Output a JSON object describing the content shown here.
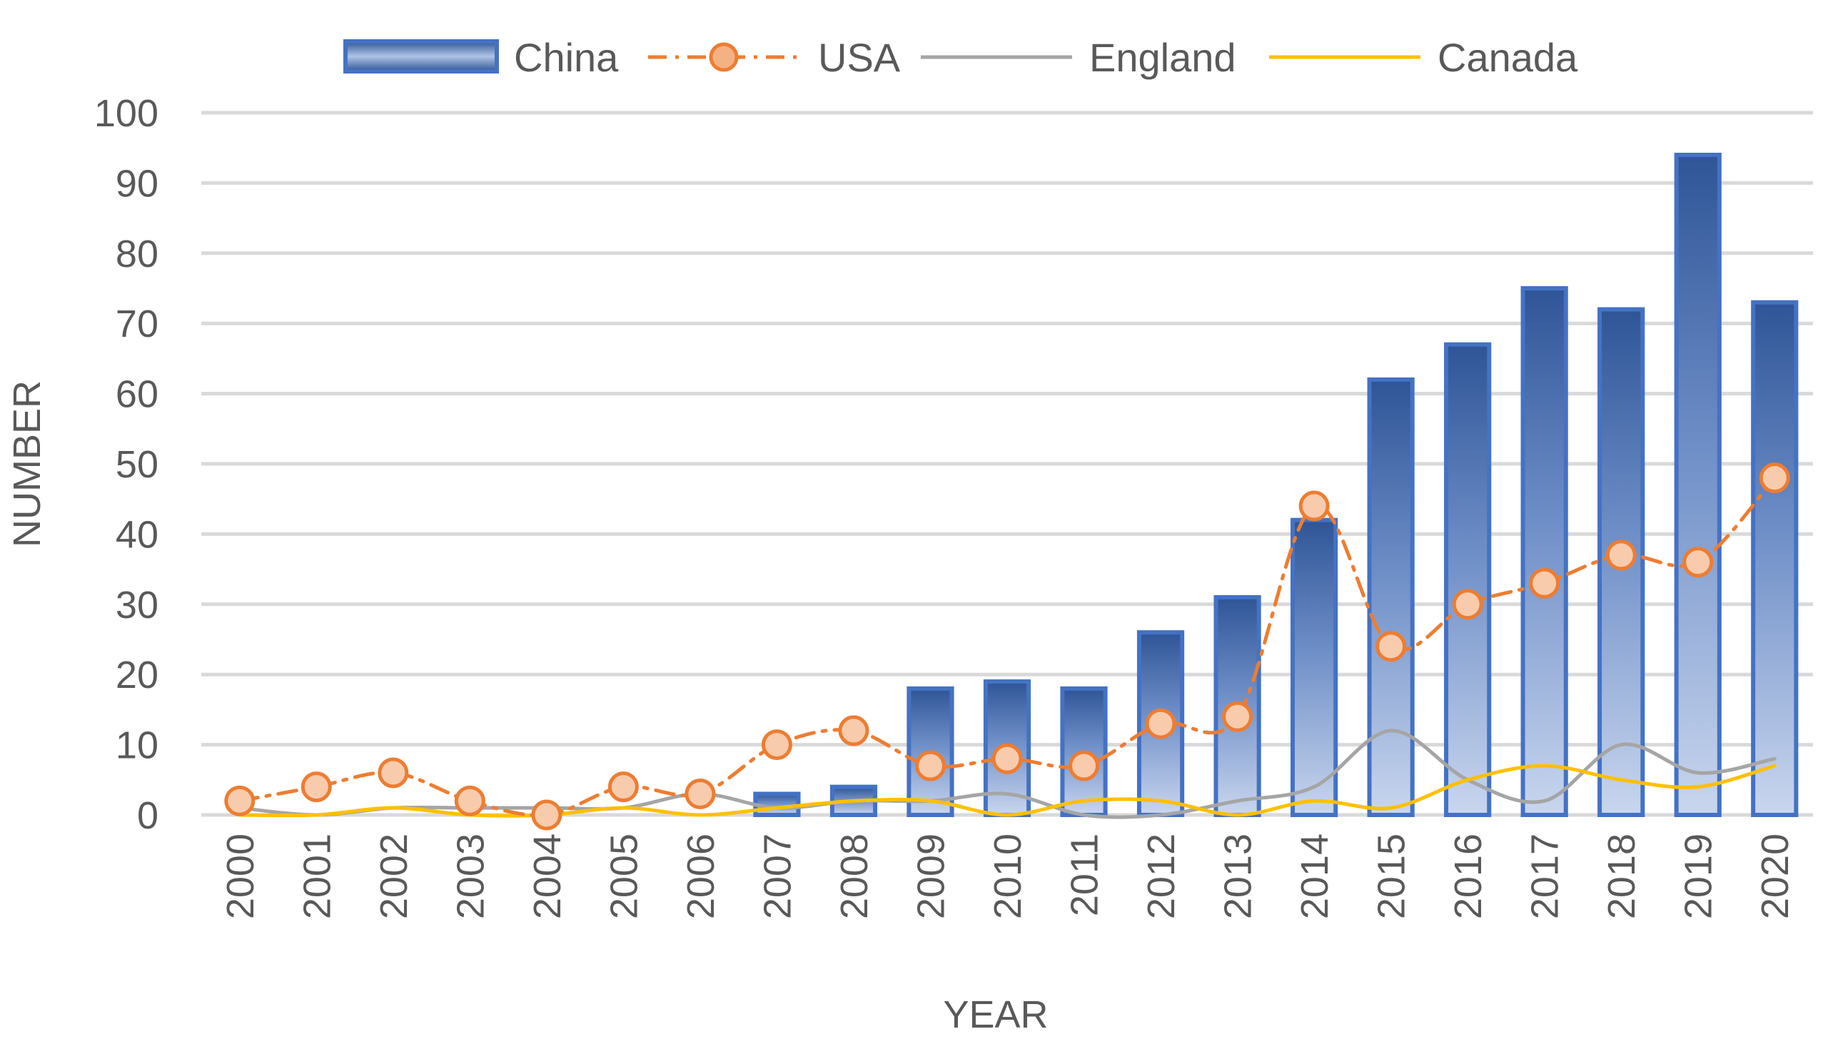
{
  "chart_data": {
    "type": "bar",
    "title": "",
    "xlabel": "YEAR",
    "ylabel": "NUMBER",
    "ylim": [
      0,
      100
    ],
    "ytick_step": 10,
    "grid": true,
    "legend_position": "top",
    "categories": [
      "2000",
      "2001",
      "2002",
      "2003",
      "2004",
      "2005",
      "2006",
      "2007",
      "2008",
      "2009",
      "2010",
      "2011",
      "2012",
      "2013",
      "2014",
      "2015",
      "2016",
      "2017",
      "2018",
      "2019",
      "2020"
    ],
    "series": [
      {
        "name": "China",
        "kind": "bar",
        "color": "#4472C4",
        "values": [
          0,
          0,
          0,
          0,
          0,
          0,
          0,
          3,
          4,
          18,
          19,
          18,
          26,
          31,
          42,
          62,
          67,
          75,
          72,
          94,
          73
        ]
      },
      {
        "name": "USA",
        "kind": "line-marker",
        "color": "#ED7D31",
        "values": [
          2,
          4,
          6,
          2,
          0,
          4,
          3,
          10,
          12,
          7,
          8,
          7,
          13,
          14,
          44,
          24,
          30,
          33,
          37,
          36,
          48
        ]
      },
      {
        "name": "England",
        "kind": "line",
        "color": "#A5A5A5",
        "values": [
          1,
          0,
          1,
          1,
          1,
          1,
          3,
          1,
          2,
          2,
          3,
          0,
          0,
          2,
          4,
          12,
          5,
          2,
          10,
          6,
          8
        ]
      },
      {
        "name": "Canada",
        "kind": "line",
        "color": "#FFC000",
        "values": [
          0,
          0,
          1,
          0,
          0,
          1,
          0,
          1,
          2,
          2,
          0,
          2,
          2,
          0,
          2,
          1,
          5,
          7,
          5,
          4,
          7
        ]
      }
    ]
  }
}
